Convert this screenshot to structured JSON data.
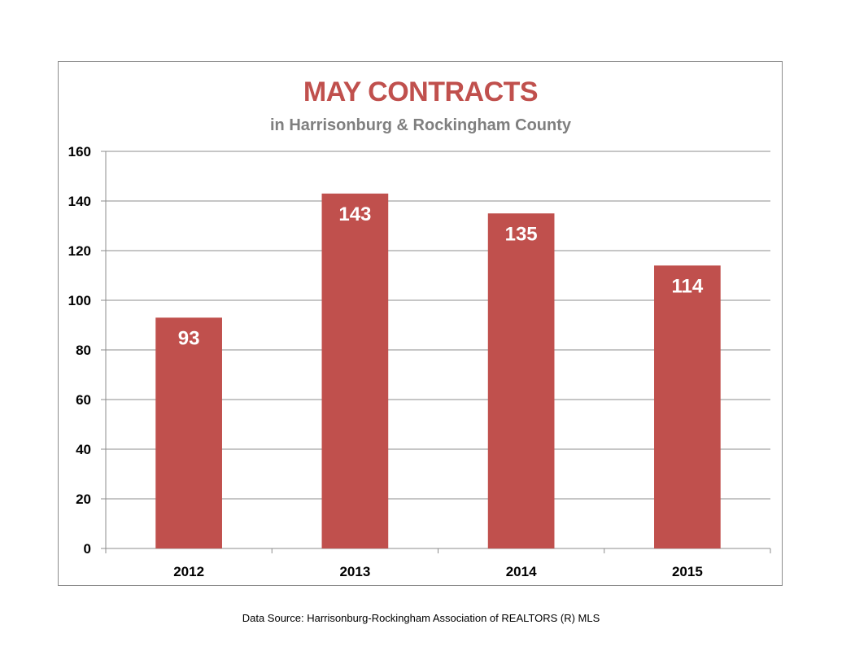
{
  "chart_data": {
    "type": "bar",
    "title": "MAY CONTRACTS",
    "subtitle": "in Harrisonburg & Rockingham County",
    "categories": [
      "2012",
      "2013",
      "2014",
      "2015"
    ],
    "values": [
      93,
      143,
      135,
      114
    ],
    "data_labels": [
      "93",
      "143",
      "135",
      "114"
    ],
    "y_ticks": [
      0,
      20,
      40,
      60,
      80,
      100,
      120,
      140,
      160
    ],
    "ylim": [
      0,
      160
    ],
    "xlabel": "",
    "ylabel": "",
    "grid": true,
    "legend": "none",
    "colors": {
      "bar": "#c0504d",
      "title": "#c0504d",
      "subtitle": "#7f7f7f",
      "grid": "#8c8c8c",
      "data_label": "#ffffff"
    }
  },
  "source_note": "Data Source: Harrisonburg-Rockingham Association of REALTORS (R) MLS"
}
